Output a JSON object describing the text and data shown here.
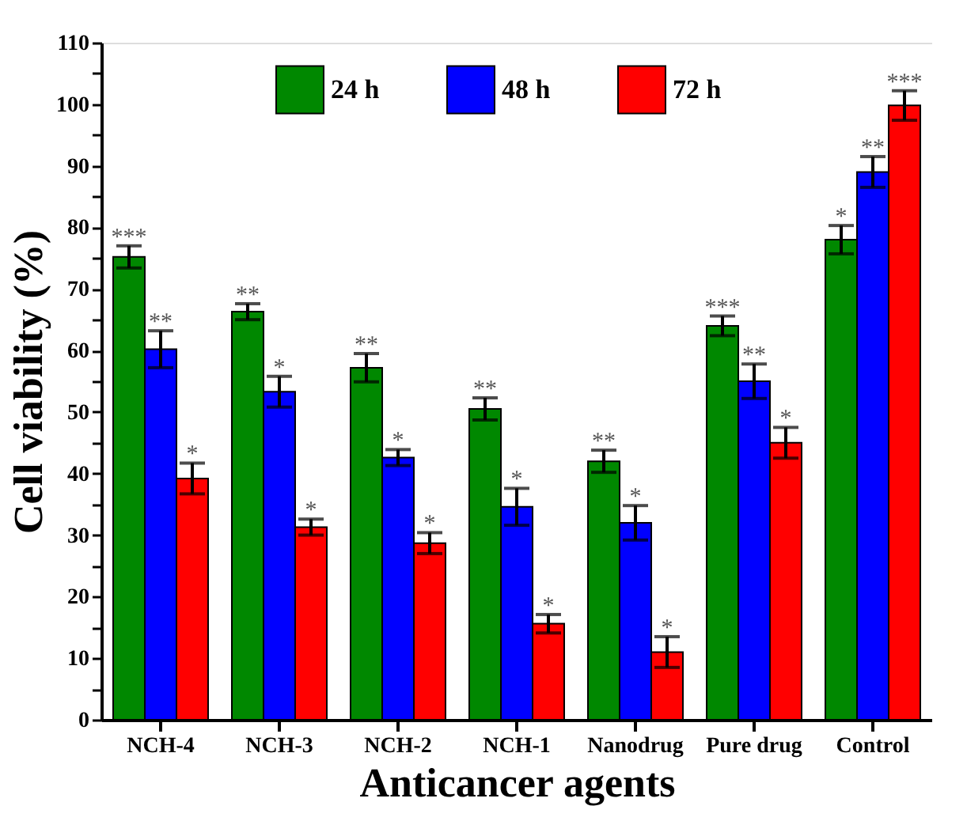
{
  "chart_data": {
    "type": "bar",
    "xlabel": "Anticancer agents",
    "ylabel": "Cell viability (%)",
    "categories": [
      "NCH-4",
      "NCH-3",
      "NCH-2",
      "NCH-1",
      "Nanodrug",
      "Pure drug",
      "Control"
    ],
    "series": [
      {
        "name": "24 h",
        "color": "#008800",
        "values": [
          75.2,
          66.3,
          57.2,
          50.5,
          42,
          64,
          78
        ],
        "errors": [
          1.8,
          1.3,
          2.3,
          1.8,
          1.8,
          1.6,
          2.3
        ],
        "value_labels": [
          "***",
          "**",
          "**",
          "**",
          "**",
          "***",
          "*"
        ]
      },
      {
        "name": "48 h",
        "color": "#0000ff",
        "values": [
          60.2,
          53.3,
          42.6,
          34.6,
          32,
          55,
          89
        ],
        "errors": [
          3,
          2.5,
          1.3,
          3,
          2.8,
          2.8,
          2.5
        ],
        "value_labels": [
          "**",
          "*",
          "*",
          "*",
          "*",
          "**",
          "**"
        ]
      },
      {
        "name": "72 h",
        "color": "#ff0000",
        "values": [
          39.2,
          31.3,
          28.7,
          15.6,
          11,
          45,
          99.8
        ],
        "errors": [
          2.5,
          1.3,
          1.7,
          1.5,
          2.5,
          2.5,
          2.4
        ],
        "value_labels": [
          "*",
          "*",
          "*",
          "*",
          "*",
          "*",
          "***"
        ]
      }
    ],
    "ylim": [
      0,
      110
    ],
    "yticks": [
      0,
      {
        "value": 5,
        "label": null
      },
      10,
      {
        "value": 15,
        "label": null
      },
      20,
      {
        "value": 25,
        "label": null
      },
      30,
      {
        "value": 35,
        "label": null
      },
      40,
      {
        "value": 45,
        "label": null
      },
      50,
      {
        "value": 55,
        "label": null
      },
      60,
      {
        "value": 65,
        "label": null
      },
      70,
      {
        "value": 75,
        "label": null
      },
      80,
      {
        "value": 85,
        "label": null
      },
      90,
      {
        "value": 95,
        "label": null
      },
      100,
      {
        "value": 105,
        "label": null
      },
      110
    ],
    "legend": "top",
    "grid": false
  }
}
